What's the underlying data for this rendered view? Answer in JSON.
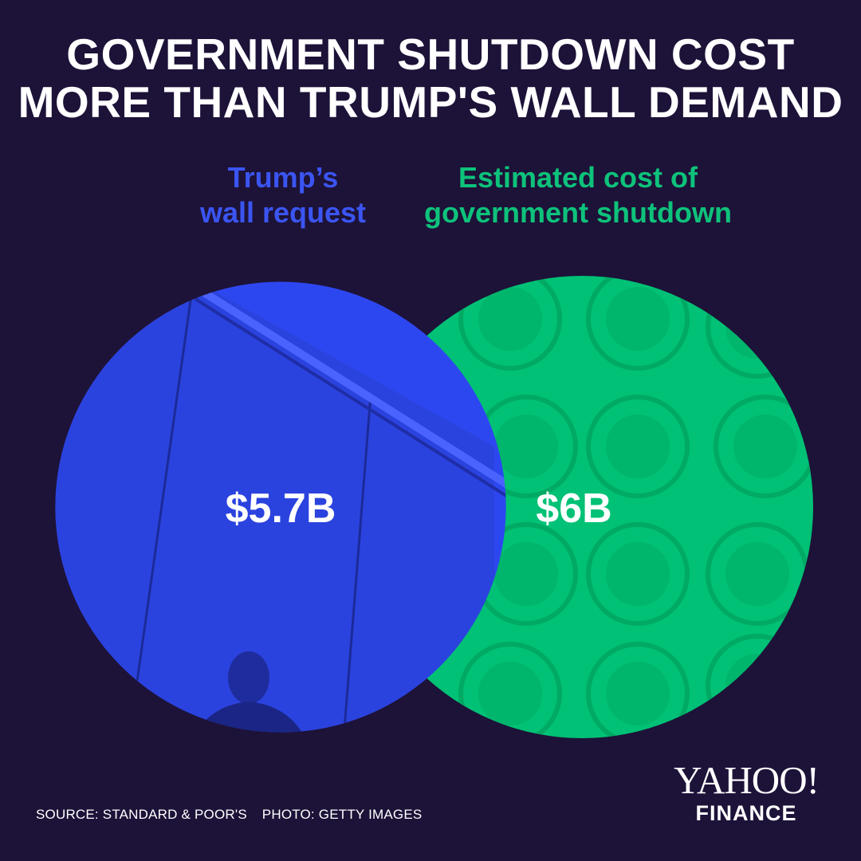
{
  "title": {
    "line1": "GOVERNMENT SHUTDOWN COST",
    "line2": "MORE THAN TRUMP'S WALL DEMAND"
  },
  "colors": {
    "background": "#1d1238",
    "wall": "#2d47f0",
    "shutdown": "#00c175",
    "wall_label": "#3b55f2",
    "shutdown_label": "#0ec27b"
  },
  "chart_data": {
    "type": "bubble",
    "unit": "billion USD",
    "series": [
      {
        "name": "Trump’s wall request",
        "label_lines": [
          "Trump’s",
          "wall request"
        ],
        "value": 5.7,
        "display": "$5.7B",
        "color": "#2d47f0"
      },
      {
        "name": "Estimated cost of government shutdown",
        "label_lines": [
          "Estimated cost of",
          "government shutdown"
        ],
        "value": 6,
        "display": "$6B",
        "color": "#00c175"
      }
    ]
  },
  "footer": {
    "source": "SOURCE: STANDARD & POOR'S",
    "photo": "PHOTO: GETTY IMAGES"
  },
  "logo": {
    "top": "YAHOO!",
    "bottom": "FINANCE"
  }
}
